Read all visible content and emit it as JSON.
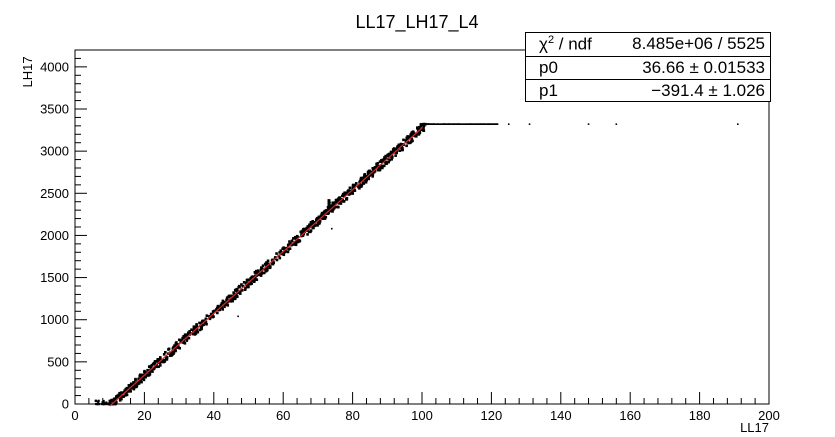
{
  "chart_data": {
    "type": "scatter",
    "title": "LL17_LH17_L4",
    "xlabel": "LL17",
    "ylabel": "LH17",
    "xlim": [
      0,
      200
    ],
    "ylim": [
      0,
      4200
    ],
    "x_ticks": [
      0,
      20,
      40,
      60,
      80,
      100,
      120,
      140,
      160,
      180,
      200
    ],
    "y_ticks": [
      0,
      500,
      1000,
      1500,
      2000,
      2500,
      3000,
      3500,
      4000
    ],
    "grid": false,
    "colors": {
      "points": "#000000",
      "fit": "#d62728",
      "axis": "#000000"
    },
    "saturation_level": 3320,
    "fit": {
      "function": "p0*x + p1",
      "p0": 36.66,
      "p1": -391.4,
      "x_range": [
        10,
        100
      ]
    },
    "stats": {
      "chi2_label": "χ",
      "chi2_sup": "2",
      "chi2_suffix": " / ndf",
      "chi2_value": "8.485e+06 / 5525",
      "rows": [
        {
          "name": "p0",
          "value": "36.66 ± 0.01533"
        },
        {
          "name": "p1",
          "value": "−391.4 ± 1.026"
        }
      ]
    },
    "outliers": [
      {
        "x": 125,
        "y": 3320
      },
      {
        "x": 131,
        "y": 3320
      },
      {
        "x": 148,
        "y": 3320
      },
      {
        "x": 156,
        "y": 3320
      },
      {
        "x": 191,
        "y": 3320
      },
      {
        "x": 47,
        "y": 1040
      },
      {
        "x": 74,
        "y": 2080
      },
      {
        "x": 73,
        "y": 2420
      },
      {
        "x": 73.5,
        "y": 2390
      }
    ]
  }
}
